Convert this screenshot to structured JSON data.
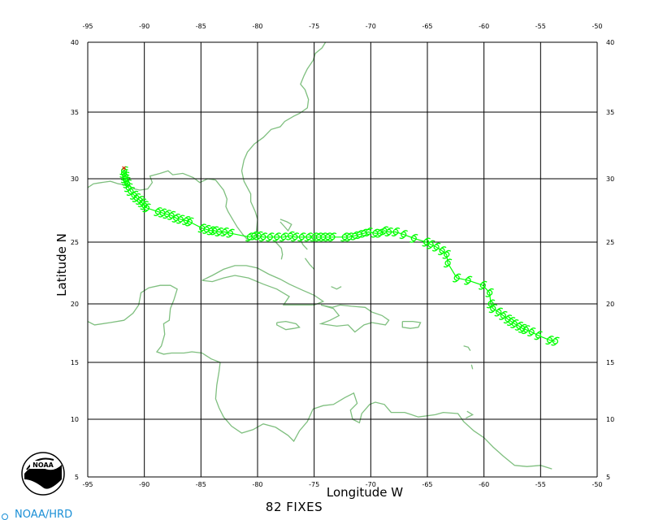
{
  "map": {
    "xlabel": "Longitude W",
    "ylabel": "Latitude N",
    "fixes_label": "82 FIXES",
    "credit": "NOAA/HRD",
    "logo_text": "NOAA",
    "lon_range": [
      -95,
      -50
    ],
    "lat_range": [
      5,
      40
    ],
    "lon_ticks": [
      "-95",
      "-90",
      "-85",
      "-80",
      "-75",
      "-70",
      "-65",
      "-60",
      "-55",
      "-50"
    ],
    "lat_ticks": [
      "40",
      "35",
      "30",
      "25",
      "20",
      "15",
      "10",
      "5"
    ],
    "colors": {
      "track": "#00ff00",
      "coast": "#7fbf7f",
      "grid": "#000000",
      "landfall": "#ff0000"
    }
  },
  "chart_data": {
    "type": "scatter",
    "title": "",
    "xlabel": "Longitude W",
    "ylabel": "Latitude N",
    "xlim": [
      -95,
      -50
    ],
    "ylim": [
      5,
      40
    ],
    "grid": true,
    "last_position": {
      "lon": -91.8,
      "lat": 30.8
    },
    "track_fixes": [
      {
        "lon": -53.7,
        "lat": 16.8
      },
      {
        "lon": -54.2,
        "lat": 16.9
      },
      {
        "lon": -55.2,
        "lat": 17.3
      },
      {
        "lon": -55.8,
        "lat": 17.6
      },
      {
        "lon": -56.3,
        "lat": 17.8
      },
      {
        "lon": -56.6,
        "lat": 17.9
      },
      {
        "lon": -56.9,
        "lat": 18.1
      },
      {
        "lon": -57.3,
        "lat": 18.3
      },
      {
        "lon": -57.6,
        "lat": 18.5
      },
      {
        "lon": -57.9,
        "lat": 18.7
      },
      {
        "lon": -58.3,
        "lat": 19.0
      },
      {
        "lon": -58.7,
        "lat": 19.3
      },
      {
        "lon": -59.2,
        "lat": 19.6
      },
      {
        "lon": -59.4,
        "lat": 20.0
      },
      {
        "lon": -59.5,
        "lat": 20.9
      },
      {
        "lon": -60.1,
        "lat": 21.5
      },
      {
        "lon": -61.4,
        "lat": 21.9
      },
      {
        "lon": -62.4,
        "lat": 22.1
      },
      {
        "lon": -63.2,
        "lat": 23.3
      },
      {
        "lon": -63.3,
        "lat": 24.0
      },
      {
        "lon": -63.7,
        "lat": 24.3
      },
      {
        "lon": -64.2,
        "lat": 24.6
      },
      {
        "lon": -64.7,
        "lat": 24.8
      },
      {
        "lon": -65.1,
        "lat": 25.0
      },
      {
        "lon": -66.2,
        "lat": 25.3
      },
      {
        "lon": -67.1,
        "lat": 25.6
      },
      {
        "lon": -67.8,
        "lat": 25.8
      },
      {
        "lon": -68.4,
        "lat": 25.8
      },
      {
        "lon": -68.8,
        "lat": 25.9
      },
      {
        "lon": -69.2,
        "lat": 25.7
      },
      {
        "lon": -69.6,
        "lat": 25.7
      },
      {
        "lon": -70.2,
        "lat": 25.8
      },
      {
        "lon": -70.6,
        "lat": 25.7
      },
      {
        "lon": -71.0,
        "lat": 25.6
      },
      {
        "lon": -71.4,
        "lat": 25.5
      },
      {
        "lon": -71.9,
        "lat": 25.4
      },
      {
        "lon": -72.3,
        "lat": 25.4
      },
      {
        "lon": -73.4,
        "lat": 25.4
      },
      {
        "lon": -73.8,
        "lat": 25.4
      },
      {
        "lon": -74.2,
        "lat": 25.4
      },
      {
        "lon": -74.6,
        "lat": 25.4
      },
      {
        "lon": -75.0,
        "lat": 25.4
      },
      {
        "lon": -75.5,
        "lat": 25.4
      },
      {
        "lon": -76.1,
        "lat": 25.4
      },
      {
        "lon": -76.7,
        "lat": 25.4
      },
      {
        "lon": -77.1,
        "lat": 25.5
      },
      {
        "lon": -77.7,
        "lat": 25.4
      },
      {
        "lon": -78.3,
        "lat": 25.4
      },
      {
        "lon": -78.9,
        "lat": 25.4
      },
      {
        "lon": -79.5,
        "lat": 25.4
      },
      {
        "lon": -79.9,
        "lat": 25.5
      },
      {
        "lon": -80.3,
        "lat": 25.5
      },
      {
        "lon": -80.7,
        "lat": 25.4
      },
      {
        "lon": -82.4,
        "lat": 25.7
      },
      {
        "lon": -82.9,
        "lat": 25.8
      },
      {
        "lon": -83.4,
        "lat": 25.8
      },
      {
        "lon": -83.8,
        "lat": 25.9
      },
      {
        "lon": -84.1,
        "lat": 25.9
      },
      {
        "lon": -84.5,
        "lat": 26.0
      },
      {
        "lon": -84.9,
        "lat": 26.1
      },
      {
        "lon": -86.0,
        "lat": 26.6
      },
      {
        "lon": -86.3,
        "lat": 26.7
      },
      {
        "lon": -86.8,
        "lat": 26.8
      },
      {
        "lon": -87.2,
        "lat": 26.9
      },
      {
        "lon": -87.6,
        "lat": 27.1
      },
      {
        "lon": -88.0,
        "lat": 27.2
      },
      {
        "lon": -88.4,
        "lat": 27.3
      },
      {
        "lon": -88.8,
        "lat": 27.4
      },
      {
        "lon": -89.8,
        "lat": 27.7
      },
      {
        "lon": -90.0,
        "lat": 27.9
      },
      {
        "lon": -90.2,
        "lat": 28.1
      },
      {
        "lon": -90.4,
        "lat": 28.3
      },
      {
        "lon": -90.7,
        "lat": 28.5
      },
      {
        "lon": -90.9,
        "lat": 28.7
      },
      {
        "lon": -91.2,
        "lat": 29.0
      },
      {
        "lon": -91.4,
        "lat": 29.3
      },
      {
        "lon": -91.5,
        "lat": 29.6
      },
      {
        "lon": -91.6,
        "lat": 29.8
      },
      {
        "lon": -91.7,
        "lat": 30.0
      },
      {
        "lon": -91.7,
        "lat": 30.2
      },
      {
        "lon": -91.8,
        "lat": 30.4
      },
      {
        "lon": -91.8,
        "lat": 30.6
      }
    ],
    "coastlines": [
      [
        [
          -97.5,
          27.8
        ],
        [
          -97.2,
          28.3
        ],
        [
          -96.5,
          28.7
        ],
        [
          -95.8,
          29.1
        ],
        [
          -95.0,
          29.3
        ],
        [
          -94.5,
          29.6
        ],
        [
          -93.8,
          29.7
        ],
        [
          -93.0,
          29.8
        ],
        [
          -92.3,
          29.6
        ],
        [
          -91.5,
          29.5
        ],
        [
          -90.9,
          29.2
        ],
        [
          -90.4,
          29.1
        ],
        [
          -89.7,
          29.2
        ],
        [
          -89.3,
          29.7
        ],
        [
          -89.5,
          30.2
        ],
        [
          -88.6,
          30.4
        ],
        [
          -87.9,
          30.6
        ],
        [
          -87.5,
          30.3
        ],
        [
          -86.6,
          30.4
        ],
        [
          -85.7,
          30.1
        ],
        [
          -85.1,
          29.7
        ],
        [
          -84.4,
          30.0
        ],
        [
          -83.7,
          29.9
        ],
        [
          -83.0,
          29.1
        ],
        [
          -82.7,
          28.4
        ],
        [
          -82.8,
          27.8
        ],
        [
          -82.6,
          27.4
        ],
        [
          -82.2,
          26.8
        ],
        [
          -81.8,
          26.2
        ],
        [
          -81.3,
          25.6
        ],
        [
          -80.9,
          25.2
        ],
        [
          -80.4,
          25.2
        ],
        [
          -80.1,
          25.8
        ],
        [
          -80.0,
          26.8
        ],
        [
          -80.2,
          27.4
        ],
        [
          -80.6,
          28.2
        ],
        [
          -80.6,
          28.8
        ],
        [
          -81.2,
          29.8
        ],
        [
          -81.4,
          30.6
        ],
        [
          -81.2,
          31.4
        ],
        [
          -80.9,
          32.0
        ],
        [
          -80.3,
          32.6
        ],
        [
          -79.5,
          33.1
        ],
        [
          -78.8,
          33.7
        ],
        [
          -78.0,
          33.9
        ],
        [
          -77.6,
          34.3
        ],
        [
          -76.8,
          34.7
        ],
        [
          -76.3,
          34.9
        ],
        [
          -75.6,
          35.3
        ],
        [
          -75.5,
          35.9
        ],
        [
          -75.8,
          36.6
        ],
        [
          -76.2,
          37.0
        ],
        [
          -75.9,
          37.6
        ],
        [
          -75.6,
          38.1
        ],
        [
          -75.1,
          38.7
        ],
        [
          -74.9,
          39.2
        ],
        [
          -74.3,
          39.6
        ],
        [
          -74.0,
          40.0
        ],
        [
          -73.9,
          40.6
        ]
      ],
      [
        [
          -97.5,
          21.0
        ],
        [
          -97.2,
          20.0
        ],
        [
          -96.3,
          19.3
        ],
        [
          -95.2,
          18.6
        ],
        [
          -94.4,
          18.2
        ],
        [
          -93.0,
          18.4
        ],
        [
          -91.8,
          18.6
        ],
        [
          -91.0,
          19.2
        ],
        [
          -90.5,
          19.9
        ],
        [
          -90.3,
          20.9
        ],
        [
          -89.6,
          21.3
        ],
        [
          -88.6,
          21.5
        ],
        [
          -87.7,
          21.5
        ],
        [
          -87.1,
          21.2
        ],
        [
          -87.4,
          20.3
        ],
        [
          -87.7,
          19.6
        ],
        [
          -87.8,
          18.6
        ],
        [
          -88.3,
          18.3
        ],
        [
          -88.2,
          17.4
        ],
        [
          -88.5,
          16.4
        ],
        [
          -88.9,
          15.9
        ],
        [
          -88.3,
          15.7
        ],
        [
          -87.6,
          15.8
        ],
        [
          -86.5,
          15.8
        ],
        [
          -85.8,
          15.9
        ],
        [
          -84.9,
          15.8
        ],
        [
          -84.1,
          15.3
        ],
        [
          -83.3,
          15.0
        ],
        [
          -83.4,
          14.2
        ],
        [
          -83.6,
          13.0
        ],
        [
          -83.7,
          11.8
        ],
        [
          -83.4,
          11.0
        ],
        [
          -83.0,
          10.2
        ],
        [
          -82.3,
          9.4
        ],
        [
          -81.4,
          8.8
        ],
        [
          -80.4,
          9.1
        ],
        [
          -79.5,
          9.6
        ],
        [
          -78.4,
          9.3
        ],
        [
          -77.3,
          8.6
        ],
        [
          -76.8,
          8.1
        ],
        [
          -76.3,
          9.0
        ],
        [
          -75.6,
          9.8
        ],
        [
          -75.1,
          10.9
        ],
        [
          -74.2,
          11.2
        ],
        [
          -73.3,
          11.3
        ],
        [
          -72.3,
          11.9
        ],
        [
          -71.5,
          12.3
        ],
        [
          -71.2,
          11.4
        ],
        [
          -71.8,
          10.8
        ],
        [
          -71.6,
          10.0
        ],
        [
          -71.0,
          9.7
        ],
        [
          -70.8,
          10.5
        ],
        [
          -70.1,
          11.3
        ],
        [
          -69.6,
          11.5
        ],
        [
          -68.8,
          11.3
        ],
        [
          -68.2,
          10.6
        ],
        [
          -67.0,
          10.6
        ],
        [
          -65.8,
          10.2
        ],
        [
          -64.3,
          10.4
        ],
        [
          -63.6,
          10.6
        ],
        [
          -62.3,
          10.5
        ],
        [
          -61.8,
          9.8
        ],
        [
          -60.9,
          9.0
        ],
        [
          -60.0,
          8.4
        ],
        [
          -59.2,
          7.6
        ],
        [
          -58.3,
          6.8
        ],
        [
          -57.3,
          6.0
        ],
        [
          -56.2,
          5.9
        ],
        [
          -55.0,
          6.0
        ],
        [
          -54.0,
          5.7
        ]
      ],
      [
        [
          -84.9,
          21.9
        ],
        [
          -84.0,
          22.3
        ],
        [
          -83.0,
          22.8
        ],
        [
          -82.0,
          23.1
        ],
        [
          -81.0,
          23.1
        ],
        [
          -80.0,
          22.9
        ],
        [
          -79.0,
          22.4
        ],
        [
          -78.0,
          22.0
        ],
        [
          -77.2,
          21.6
        ],
        [
          -76.0,
          21.1
        ],
        [
          -75.0,
          20.7
        ],
        [
          -74.2,
          20.2
        ],
        [
          -75.0,
          19.9
        ],
        [
          -76.5,
          19.9
        ],
        [
          -77.7,
          19.9
        ],
        [
          -77.2,
          20.6
        ],
        [
          -78.3,
          21.2
        ],
        [
          -79.5,
          21.6
        ],
        [
          -80.8,
          22.1
        ],
        [
          -82.0,
          22.3
        ],
        [
          -83.0,
          22.1
        ],
        [
          -84.0,
          21.8
        ],
        [
          -84.9,
          21.9
        ]
      ],
      [
        [
          -74.4,
          19.9
        ],
        [
          -73.4,
          19.7
        ],
        [
          -72.7,
          19.9
        ],
        [
          -71.7,
          19.8
        ],
        [
          -70.5,
          19.7
        ],
        [
          -69.9,
          19.3
        ],
        [
          -69.0,
          19.0
        ],
        [
          -68.4,
          18.6
        ],
        [
          -68.7,
          18.2
        ],
        [
          -69.9,
          18.4
        ],
        [
          -70.6,
          18.2
        ],
        [
          -71.4,
          17.6
        ],
        [
          -72.0,
          18.2
        ],
        [
          -73.0,
          18.1
        ],
        [
          -74.4,
          18.3
        ],
        [
          -73.6,
          18.6
        ],
        [
          -72.8,
          19.0
        ],
        [
          -73.3,
          19.6
        ],
        [
          -74.4,
          19.9
        ]
      ],
      [
        [
          -78.3,
          18.4
        ],
        [
          -77.5,
          18.5
        ],
        [
          -76.6,
          18.3
        ],
        [
          -76.3,
          18.0
        ],
        [
          -76.8,
          17.9
        ],
        [
          -77.5,
          17.8
        ],
        [
          -78.3,
          18.2
        ],
        [
          -78.3,
          18.4
        ]
      ],
      [
        [
          -67.2,
          18.5
        ],
        [
          -66.3,
          18.5
        ],
        [
          -65.6,
          18.4
        ],
        [
          -65.8,
          18.0
        ],
        [
          -66.5,
          17.9
        ],
        [
          -67.2,
          18.0
        ],
        [
          -67.2,
          18.5
        ]
      ],
      [
        [
          -78.0,
          26.8
        ],
        [
          -77.4,
          26.6
        ],
        [
          -77.0,
          26.4
        ],
        [
          -77.3,
          25.9
        ],
        [
          -78.0,
          26.6
        ]
      ],
      [
        [
          -78.4,
          25.0
        ],
        [
          -77.9,
          24.5
        ],
        [
          -77.8,
          24.0
        ],
        [
          -77.9,
          23.6
        ]
      ],
      [
        [
          -76.2,
          25.2
        ],
        [
          -76.0,
          24.8
        ],
        [
          -75.6,
          24.4
        ]
      ],
      [
        [
          -75.8,
          23.7
        ],
        [
          -75.4,
          23.2
        ],
        [
          -75.0,
          22.8
        ]
      ],
      [
        [
          -73.5,
          21.4
        ],
        [
          -73.0,
          21.2
        ],
        [
          -72.6,
          21.4
        ]
      ],
      [
        [
          -61.8,
          16.4
        ],
        [
          -61.4,
          16.3
        ],
        [
          -61.2,
          16.0
        ]
      ],
      [
        [
          -61.1,
          14.8
        ],
        [
          -61.0,
          14.4
        ]
      ],
      [
        [
          -61.5,
          10.7
        ],
        [
          -61.0,
          10.4
        ],
        [
          -61.6,
          10.1
        ]
      ]
    ]
  }
}
